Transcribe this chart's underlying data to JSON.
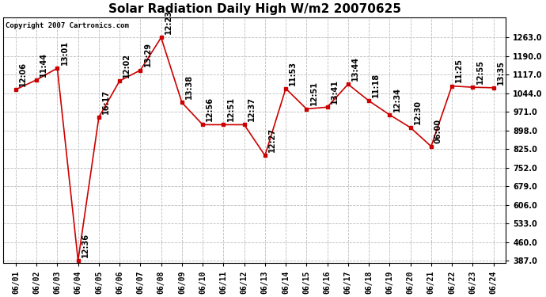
{
  "title": "Solar Radiation Daily High W/m2 20070625",
  "copyright": "Copyright 2007 Cartronics.com",
  "data": [
    {
      "day": "06/01",
      "value": 1059,
      "label": "12:06"
    },
    {
      "day": "06/02",
      "value": 1097,
      "label": "11:44"
    },
    {
      "day": "06/03",
      "value": 1143,
      "label": "13:01"
    },
    {
      "day": "06/04",
      "value": 388,
      "label": "12:36"
    },
    {
      "day": "06/05",
      "value": 950,
      "label": "16:17"
    },
    {
      "day": "06/06",
      "value": 1093,
      "label": "12:02"
    },
    {
      "day": "06/07",
      "value": 1135,
      "label": "13:29"
    },
    {
      "day": "06/08",
      "value": 1263,
      "label": "12:23"
    },
    {
      "day": "06/09",
      "value": 1008,
      "label": "13:38"
    },
    {
      "day": "06/10",
      "value": 921,
      "label": "12:56"
    },
    {
      "day": "06/11",
      "value": 921,
      "label": "12:51"
    },
    {
      "day": "06/12",
      "value": 921,
      "label": "12:37"
    },
    {
      "day": "06/13",
      "value": 800,
      "label": "12:27"
    },
    {
      "day": "06/14",
      "value": 1063,
      "label": "11:53"
    },
    {
      "day": "06/15",
      "value": 983,
      "label": "12:51"
    },
    {
      "day": "06/16",
      "value": 990,
      "label": "13:41"
    },
    {
      "day": "06/17",
      "value": 1080,
      "label": "13:44"
    },
    {
      "day": "06/18",
      "value": 1015,
      "label": "11:18"
    },
    {
      "day": "06/19",
      "value": 960,
      "label": "12:34"
    },
    {
      "day": "06/20",
      "value": 910,
      "label": "12:30"
    },
    {
      "day": "06/21",
      "value": 836,
      "label": "06:00"
    },
    {
      "day": "06/22",
      "value": 1073,
      "label": "11:25"
    },
    {
      "day": "06/23",
      "value": 1068,
      "label": "12:55"
    },
    {
      "day": "06/24",
      "value": 1066,
      "label": "13:35"
    }
  ],
  "yticks": [
    387.0,
    460.0,
    533.0,
    606.0,
    679.0,
    752.0,
    825.0,
    898.0,
    971.0,
    1044.0,
    1117.0,
    1190.0,
    1263.0
  ],
  "ymin": 387.0,
  "ymax": 1263.0,
  "line_color": "#cc0000",
  "marker_color": "#cc0000",
  "bg_color": "#ffffff",
  "grid_color": "#bbbbbb",
  "title_fontsize": 11,
  "tick_fontsize": 7,
  "copyright_fontsize": 6.5,
  "point_label_fontsize": 7
}
